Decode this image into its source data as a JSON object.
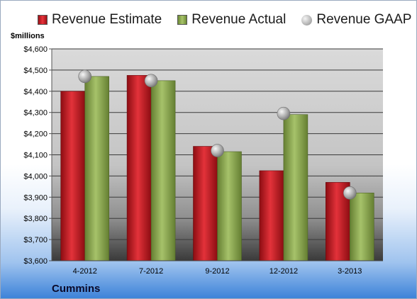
{
  "legend": {
    "estimate": "Revenue Estimate",
    "actual": "Revenue Actual",
    "gaap": "Revenue GAAP"
  },
  "unit_label": "$millions",
  "company": "Cummins",
  "colors": {
    "estimate": "#c81a22",
    "actual": "#8fae55",
    "gaap": "#a9a9a9"
  },
  "chart_data": {
    "type": "bar",
    "categories": [
      "4-2012",
      "7-2012",
      "9-2012",
      "12-2012",
      "3-2013"
    ],
    "series": [
      {
        "name": "Revenue Estimate",
        "values": [
          4400,
          4475,
          4140,
          4025,
          3970
        ]
      },
      {
        "name": "Revenue Actual",
        "values": [
          4470,
          4450,
          4115,
          4290,
          3920
        ]
      },
      {
        "name": "Revenue GAAP",
        "values": [
          4470,
          4450,
          4120,
          4295,
          3920
        ]
      }
    ],
    "y_ticks": [
      "$3,600",
      "$3,700",
      "$3,800",
      "$3,900",
      "$4,000",
      "$4,100",
      "$4,200",
      "$4,300",
      "$4,400",
      "$4,500",
      "$4,600"
    ],
    "ylim": [
      3600,
      4600
    ],
    "grid": true,
    "legend_position": "top"
  }
}
